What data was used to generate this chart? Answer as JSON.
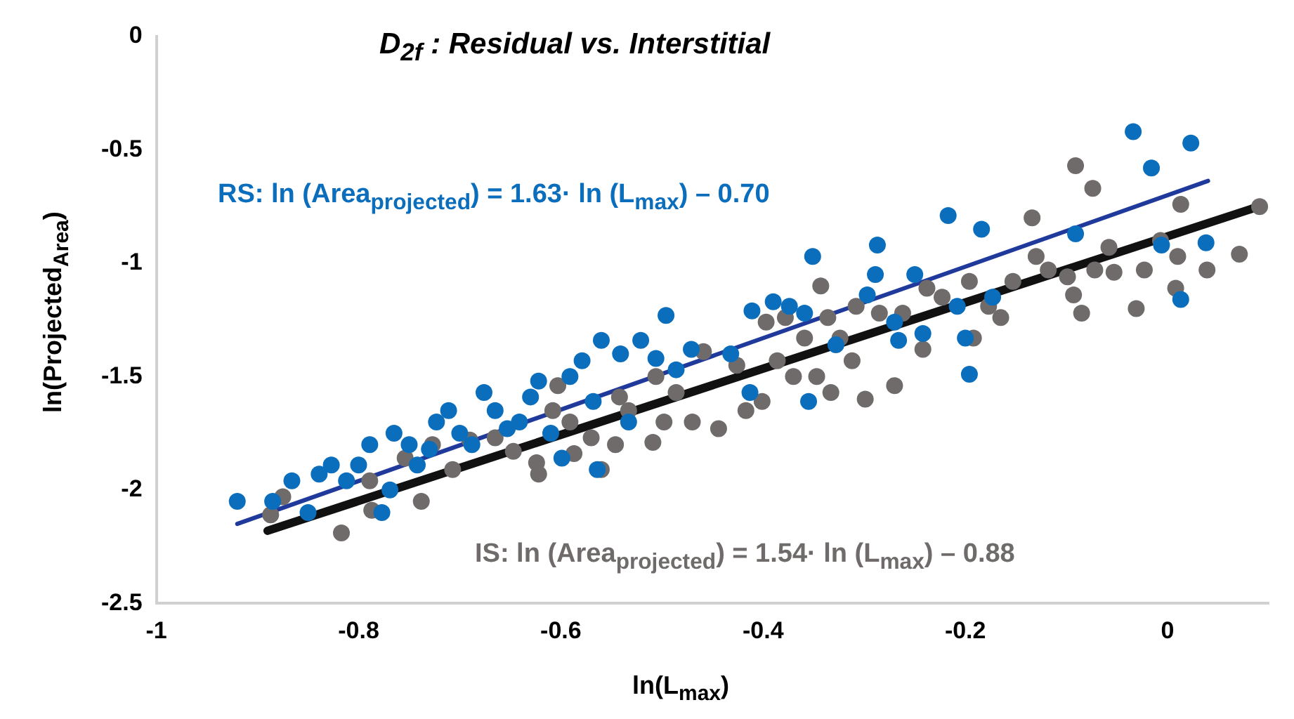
{
  "chart_data": {
    "type": "scatter",
    "title": "D$_{2f}$ : Residual vs. Interstitial",
    "xlabel": "ln(L$_{max}$)",
    "ylabel": "ln(Projected$_{Area}$)",
    "annotations": [
      "RS: ln (Area$_{projected}$) = 1.63· ln (L$_{max}$) – 0.70",
      "IS: ln (Area$_{projected}$) = 1.54· ln (L$_{max}$) – 0.88"
    ],
    "xlim": [
      -1,
      0.1
    ],
    "xticks": [
      -1,
      -0.8,
      -0.6,
      -0.4,
      -0.2,
      0
    ],
    "ylim": [
      -2.5,
      0
    ],
    "yticks": [
      -2.5,
      -2,
      -1.5,
      -1,
      -0.5,
      0
    ],
    "grid": false,
    "legend": false,
    "marker": "circle",
    "series": [
      {
        "color": "#0a6ebd",
        "x": [
          -0.92,
          -0.885,
          -0.866,
          -0.85,
          -0.839,
          -0.827,
          -0.812,
          -0.8,
          -0.789,
          -0.777,
          -0.769,
          -0.765,
          -0.75,
          -0.742,
          -0.73,
          -0.723,
          -0.711,
          -0.7,
          -0.688,
          -0.676,
          -0.665,
          -0.653,
          -0.641,
          -0.63,
          -0.622,
          -0.61,
          -0.599,
          -0.591,
          -0.579,
          -0.568,
          -0.56,
          -0.564,
          -0.541,
          -0.533,
          -0.521,
          -0.506,
          -0.496,
          -0.486,
          -0.471,
          -0.432,
          -0.413,
          -0.411,
          -0.39,
          -0.374,
          -0.359,
          -0.355,
          -0.351,
          -0.328,
          -0.297,
          -0.289,
          -0.287,
          -0.27,
          -0.266,
          -0.25,
          -0.242,
          -0.217,
          -0.208,
          -0.2,
          -0.196,
          -0.184,
          -0.173,
          -0.091,
          -0.034,
          -0.016,
          -0.006,
          0.013,
          0.023,
          0.038
        ],
        "values": [
          -2.05,
          -2.05,
          -1.96,
          -2.1,
          -1.93,
          -1.89,
          -1.96,
          -1.89,
          -1.8,
          -2.1,
          -2,
          -1.75,
          -1.8,
          -1.89,
          -1.82,
          -1.7,
          -1.65,
          -1.75,
          -1.8,
          -1.57,
          -1.65,
          -1.73,
          -1.7,
          -1.59,
          -1.52,
          -1.75,
          -1.86,
          -1.5,
          -1.43,
          -1.61,
          -1.34,
          -1.91,
          -1.4,
          -1.7,
          -1.34,
          -1.42,
          -1.23,
          -1.47,
          -1.38,
          -1.4,
          -1.57,
          -1.21,
          -1.17,
          -1.19,
          -1.22,
          -1.61,
          -0.97,
          -1.36,
          -1.14,
          -1.05,
          -0.92,
          -1.26,
          -1.34,
          -1.05,
          -1.31,
          -0.79,
          -1.19,
          -1.33,
          -1.49,
          -0.85,
          -1.15,
          -0.87,
          -0.42,
          -0.58,
          -0.92,
          -1.16,
          -0.47,
          -0.91
        ]
      },
      {
        "color": "#706b6b",
        "x": [
          -0.887,
          -0.875,
          -0.817,
          -0.789,
          -0.787,
          -0.754,
          -0.738,
          -0.727,
          -0.707,
          -0.69,
          -0.665,
          -0.647,
          -0.624,
          -0.622,
          -0.608,
          -0.603,
          -0.591,
          -0.587,
          -0.57,
          -0.56,
          -0.546,
          -0.542,
          -0.533,
          -0.509,
          -0.506,
          -0.498,
          -0.486,
          -0.47,
          -0.459,
          -0.444,
          -0.426,
          -0.417,
          -0.401,
          -0.397,
          -0.386,
          -0.378,
          -0.37,
          -0.359,
          -0.347,
          -0.343,
          -0.336,
          -0.333,
          -0.324,
          -0.312,
          -0.308,
          -0.299,
          -0.285,
          -0.27,
          -0.262,
          -0.242,
          -0.238,
          -0.223,
          -0.196,
          -0.192,
          -0.177,
          -0.165,
          -0.153,
          -0.134,
          -0.13,
          -0.118,
          -0.099,
          -0.093,
          -0.091,
          -0.085,
          -0.074,
          -0.072,
          -0.058,
          -0.053,
          -0.031,
          -0.023,
          -0.007,
          0.008,
          0.01,
          0.013,
          0.039,
          0.071,
          0.091
        ],
        "values": [
          -2.11,
          -2.03,
          -2.19,
          -1.96,
          -2.09,
          -1.86,
          -2.05,
          -1.8,
          -1.91,
          -1.78,
          -1.77,
          -1.83,
          -1.88,
          -1.93,
          -1.65,
          -1.54,
          -1.7,
          -1.84,
          -1.77,
          -1.91,
          -1.8,
          -1.59,
          -1.65,
          -1.79,
          -1.5,
          -1.7,
          -1.57,
          -1.7,
          -1.39,
          -1.73,
          -1.45,
          -1.65,
          -1.61,
          -1.26,
          -1.43,
          -1.24,
          -1.5,
          -1.33,
          -1.5,
          -1.1,
          -1.24,
          -1.57,
          -1.33,
          -1.43,
          -1.19,
          -1.6,
          -1.22,
          -1.54,
          -1.22,
          -1.38,
          -1.11,
          -1.15,
          -1.08,
          -1.33,
          -1.19,
          -1.24,
          -1.08,
          -0.8,
          -0.97,
          -1.03,
          -1.06,
          -1.14,
          -0.57,
          -1.22,
          -0.67,
          -1.03,
          -0.93,
          -1.04,
          -1.2,
          -1.03,
          -0.9,
          -1.11,
          -0.97,
          -0.74,
          -1.03,
          -0.96,
          -0.75
        ]
      },
      {
        "type": "line",
        "marker": "none",
        "color": "#1f3a9b",
        "x": [
          -0.92,
          0.04
        ],
        "values": [
          -2.15,
          -0.637
        ]
      },
      {
        "type": "line",
        "marker": "none",
        "color": "#111111",
        "x": [
          -0.89,
          0.09
        ],
        "values": [
          -2.18,
          -0.75
        ]
      }
    ]
  }
}
